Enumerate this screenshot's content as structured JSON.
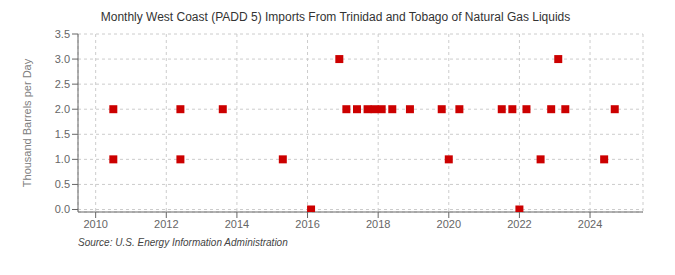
{
  "chart_data": {
    "type": "scatter",
    "title": "Monthly West Coast (PADD 5) Imports From Trinidad and Tobago of Natural Gas Liquids",
    "ylabel": "Thousand Barrels per Day",
    "annotations": [
      "Source: U.S. Energy Information Administration"
    ],
    "color": "#cc0000",
    "marker": "square",
    "grid": true,
    "xlim": [
      2009.5,
      2025.5
    ],
    "ylim": [
      -0.05,
      3.5
    ],
    "xticks": [
      2010,
      2012,
      2014,
      2016,
      2018,
      2020,
      2022,
      2024
    ],
    "yticks": [
      {
        "value": 0.0,
        "label": "0.0"
      },
      {
        "value": 0.5,
        "label": "0.5"
      },
      {
        "value": 1.0,
        "label": "1.0"
      },
      {
        "value": 1.5,
        "label": "1.5"
      },
      {
        "value": 2.0,
        "label": "2.0"
      },
      {
        "value": 2.5,
        "label": "2.5"
      },
      {
        "value": 3.0,
        "label": "3.0"
      },
      {
        "value": 3.5,
        "label": "3.5"
      }
    ],
    "x": [
      2010.5,
      2010.5,
      2012.4,
      2012.4,
      2013.6,
      2015.3,
      2016.1,
      2016.9,
      2017.1,
      2017.4,
      2017.7,
      2017.9,
      2018.1,
      2018.4,
      2018.9,
      2019.8,
      2020.0,
      2020.3,
      2021.5,
      2021.8,
      2022.0,
      2022.2,
      2022.6,
      2022.9,
      2023.1,
      2023.3,
      2024.4,
      2024.7
    ],
    "values": [
      1.0,
      2.0,
      1.0,
      2.0,
      2.0,
      1.0,
      0.0,
      3.0,
      2.0,
      2.0,
      2.0,
      2.0,
      2.0,
      2.0,
      2.0,
      2.0,
      1.0,
      2.0,
      2.0,
      2.0,
      0.0,
      2.0,
      1.0,
      2.0,
      3.0,
      2.0,
      1.0,
      2.0
    ]
  }
}
